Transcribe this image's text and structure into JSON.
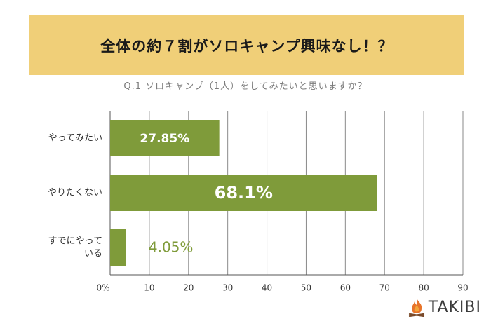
{
  "header": {
    "title": "全体の約７割がソロキャンプ興味なし！？",
    "subtitle": "Q.1 ソロキャンプ（1人）をしてみたいと思いますか？"
  },
  "brand": {
    "name": "TAKIBI",
    "icon": "flame-icon"
  },
  "colors": {
    "banner": "#f0cf78",
    "bar": "#7f9b3a",
    "label_outside": "#7f9b3a"
  },
  "chart_data": {
    "type": "bar",
    "orientation": "horizontal",
    "categories": [
      "やってみたい",
      "やりたくない",
      "すでにやっている"
    ],
    "category_label_lines": [
      [
        "やってみたい"
      ],
      [
        "やりたくない"
      ],
      [
        "すでにやって",
        "いる"
      ]
    ],
    "values": [
      27.85,
      68.1,
      4.05
    ],
    "data_labels": [
      "27.85%",
      "68.1%",
      "4.05%"
    ],
    "xlim": [
      0,
      90
    ],
    "x_ticks": [
      "0%",
      "10",
      "20",
      "30",
      "40",
      "50",
      "60",
      "70",
      "80",
      "90"
    ],
    "grid": true
  }
}
